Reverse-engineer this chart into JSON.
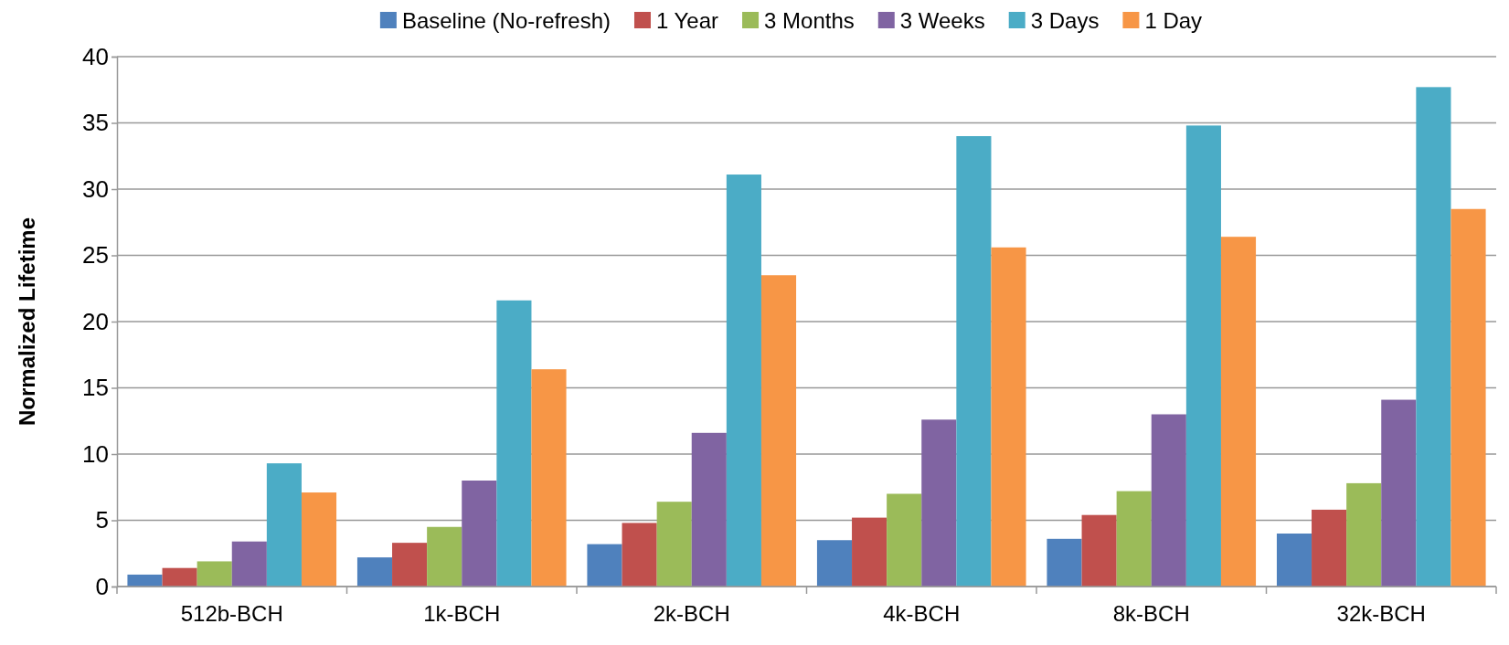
{
  "chart_data": {
    "type": "bar",
    "ylabel": "Normalized Lifetime",
    "categories": [
      "512b-BCH",
      "1k-BCH",
      "2k-BCH",
      "4k-BCH",
      "8k-BCH",
      "32k-BCH"
    ],
    "series": [
      {
        "name": "Baseline (No-refresh)",
        "color": "#4f81bd",
        "values": [
          0.9,
          2.2,
          3.2,
          3.5,
          3.6,
          4.0
        ]
      },
      {
        "name": "1 Year",
        "color": "#c0504d",
        "values": [
          1.4,
          3.3,
          4.8,
          5.2,
          5.4,
          5.8
        ]
      },
      {
        "name": "3 Months",
        "color": "#9bbb59",
        "values": [
          1.9,
          4.5,
          6.4,
          7.0,
          7.2,
          7.8
        ]
      },
      {
        "name": "3 Weeks",
        "color": "#8064a2",
        "values": [
          3.4,
          8.0,
          11.6,
          12.6,
          13.0,
          14.1
        ]
      },
      {
        "name": "3 Days",
        "color": "#4bacc6",
        "values": [
          9.3,
          21.6,
          31.1,
          34.0,
          34.8,
          37.7
        ]
      },
      {
        "name": "1 Day",
        "color": "#f79646",
        "values": [
          7.1,
          16.4,
          23.5,
          25.6,
          26.4,
          28.5
        ]
      }
    ],
    "ylim": [
      0,
      40
    ],
    "yticks": [
      0,
      5,
      10,
      15,
      20,
      25,
      30,
      35,
      40
    ],
    "grid": "y",
    "legend": "top"
  }
}
